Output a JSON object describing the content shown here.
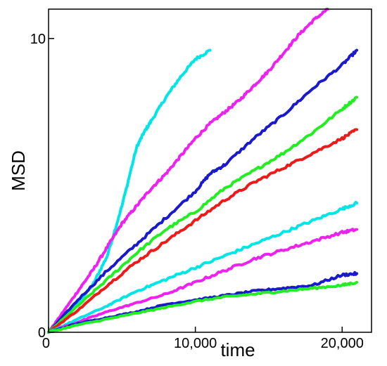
{
  "chart_data": {
    "type": "line",
    "title": "",
    "xlabel": "time",
    "ylabel": "MSD",
    "xlim": [
      0,
      22000
    ],
    "ylim": [
      0,
      11
    ],
    "grid": false,
    "legend": "none",
    "x_ticks": [
      {
        "value": 0,
        "label": "0"
      },
      {
        "value": 10000,
        "label": "10,000"
      },
      {
        "value": 20000,
        "label": "20,000"
      }
    ],
    "y_ticks": [
      {
        "value": 0,
        "label": "0"
      },
      {
        "value": 10,
        "label": "10"
      }
    ],
    "series": [
      {
        "color": "#00e5e5",
        "x": [
          0,
          1000,
          2000,
          3000,
          4000,
          5000,
          6000,
          6500,
          7000,
          8000,
          9000,
          10000,
          11000
        ],
        "y": [
          0,
          0.45,
          1.0,
          1.6,
          2.6,
          4.3,
          6.3,
          6.8,
          7.2,
          8.0,
          8.7,
          9.3,
          9.6
        ]
      },
      {
        "color": "#ee22ee",
        "x": [
          0,
          1000,
          2000,
          3000,
          4000,
          5000,
          6000,
          7000,
          8000,
          9000,
          10000,
          11000,
          12000,
          13000,
          14000,
          15000,
          16000,
          17000,
          18000,
          19000
        ],
        "y": [
          0,
          0.7,
          1.4,
          2.1,
          2.9,
          3.7,
          4.3,
          4.9,
          5.4,
          6.0,
          6.6,
          7.1,
          7.5,
          7.9,
          8.4,
          8.9,
          9.5,
          10.1,
          10.6,
          11.0
        ]
      },
      {
        "color": "#1a1acc",
        "x": [
          0,
          2000,
          4000,
          6000,
          8000,
          10000,
          11000,
          12000,
          14000,
          16000,
          18000,
          20000,
          21000
        ],
        "y": [
          0,
          1.1,
          2.1,
          3.0,
          3.9,
          4.8,
          5.4,
          5.7,
          6.6,
          7.4,
          8.3,
          9.1,
          9.6
        ]
      },
      {
        "color": "#22ee22",
        "x": [
          0,
          2000,
          4000,
          6000,
          8000,
          10000,
          12000,
          14000,
          16000,
          18000,
          20000,
          21000
        ],
        "y": [
          0,
          0.9,
          1.8,
          2.7,
          3.5,
          4.1,
          4.9,
          5.5,
          6.1,
          6.8,
          7.6,
          8.0
        ]
      },
      {
        "color": "#ee1a1a",
        "x": [
          0,
          2000,
          4000,
          6000,
          8000,
          10000,
          12000,
          14000,
          16000,
          18000,
          20000,
          21000
        ],
        "y": [
          0,
          0.75,
          1.6,
          2.4,
          3.1,
          3.8,
          4.5,
          5.1,
          5.6,
          6.1,
          6.6,
          6.9
        ]
      },
      {
        "color": "#00e5e5",
        "x": [
          0,
          2000,
          4000,
          6000,
          8000,
          10000,
          12000,
          14000,
          16000,
          18000,
          20000,
          21000
        ],
        "y": [
          0,
          0.45,
          0.9,
          1.4,
          1.8,
          2.2,
          2.6,
          3.0,
          3.4,
          3.8,
          4.2,
          4.4
        ]
      },
      {
        "color": "#ee22ee",
        "x": [
          0,
          2000,
          4000,
          6000,
          8000,
          10000,
          12000,
          14000,
          16000,
          18000,
          20000,
          21000
        ],
        "y": [
          0,
          0.35,
          0.7,
          1.0,
          1.3,
          1.7,
          2.1,
          2.5,
          2.8,
          3.1,
          3.4,
          3.5
        ]
      },
      {
        "color": "#1a1acc",
        "x": [
          0,
          2000,
          4000,
          6000,
          8000,
          10000,
          12000,
          14000,
          16000,
          18000,
          20000,
          21000
        ],
        "y": [
          0,
          0.3,
          0.5,
          0.7,
          0.95,
          1.1,
          1.25,
          1.4,
          1.5,
          1.6,
          1.95,
          2.0
        ]
      },
      {
        "color": "#22ee22",
        "x": [
          0,
          2000,
          4000,
          6000,
          8000,
          10000,
          12000,
          14000,
          16000,
          18000,
          20000,
          21000
        ],
        "y": [
          0,
          0.25,
          0.45,
          0.65,
          0.85,
          1.05,
          1.2,
          1.3,
          1.4,
          1.5,
          1.6,
          1.7
        ]
      }
    ]
  }
}
